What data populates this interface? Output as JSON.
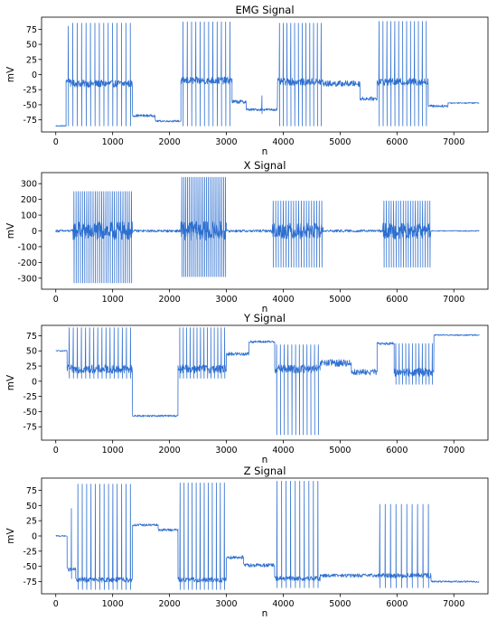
{
  "chart_data": [
    {
      "type": "line",
      "title": "EMG Signal",
      "xlabel": "n",
      "ylabel": "mV",
      "xlim": [
        -250,
        7600
      ],
      "ylim": [
        -95,
        95
      ],
      "xticks": [
        0,
        1000,
        2000,
        3000,
        4000,
        5000,
        6000,
        7000
      ],
      "yticks": [
        -75,
        -50,
        -25,
        0,
        25,
        50,
        75
      ],
      "grid": false,
      "color": "#2e6fd0",
      "segments": [
        {
          "x": [
            0,
            180
          ],
          "level": -85,
          "spikes": 0,
          "peak": 0,
          "trough": 0,
          "noise": 1
        },
        {
          "x": [
            180,
            260
          ],
          "level": -10,
          "spikes": 1,
          "peak": 80,
          "trough": -85,
          "noise": 4
        },
        {
          "x": [
            260,
            1350
          ],
          "level": -15,
          "spikes": 14,
          "peak": 85,
          "trough": -85,
          "noise": 6
        },
        {
          "x": [
            1350,
            1750
          ],
          "level": -68,
          "spikes": 0,
          "peak": 0,
          "trough": 0,
          "noise": 2
        },
        {
          "x": [
            1750,
            2200
          ],
          "level": -77,
          "spikes": 0,
          "peak": 0,
          "trough": 0,
          "noise": 1.5
        },
        {
          "x": [
            2200,
            3100
          ],
          "level": -10,
          "spikes": 12,
          "peak": 87,
          "trough": -85,
          "noise": 6
        },
        {
          "x": [
            3100,
            3350
          ],
          "level": -45,
          "spikes": 0,
          "peak": 0,
          "trough": 0,
          "noise": 3
        },
        {
          "x": [
            3350,
            3900
          ],
          "level": -58,
          "spikes": 1,
          "peak": -35,
          "trough": -65,
          "noise": 2
        },
        {
          "x": [
            3900,
            4700
          ],
          "level": -12,
          "spikes": 12,
          "peak": 85,
          "trough": -85,
          "noise": 6
        },
        {
          "x": [
            4700,
            5350
          ],
          "level": -15,
          "spikes": 0,
          "peak": 0,
          "trough": 0,
          "noise": 5
        },
        {
          "x": [
            5350,
            5650
          ],
          "level": -40,
          "spikes": 0,
          "peak": 0,
          "trough": 0,
          "noise": 3
        },
        {
          "x": [
            5650,
            6550
          ],
          "level": -12,
          "spikes": 13,
          "peak": 88,
          "trough": -85,
          "noise": 6
        },
        {
          "x": [
            6550,
            6900
          ],
          "level": -52,
          "spikes": 0,
          "peak": 0,
          "trough": 0,
          "noise": 2
        },
        {
          "x": [
            6900,
            7450
          ],
          "level": -47,
          "spikes": 0,
          "peak": 0,
          "trough": 0,
          "noise": 1
        }
      ]
    },
    {
      "type": "line",
      "title": "X Signal",
      "xlabel": "n",
      "ylabel": "mV",
      "xlim": [
        -250,
        7600
      ],
      "ylim": [
        -370,
        370
      ],
      "xticks": [
        0,
        1000,
        2000,
        3000,
        4000,
        5000,
        6000,
        7000
      ],
      "yticks": [
        -300,
        -200,
        -100,
        0,
        100,
        200,
        300
      ],
      "grid": false,
      "color": "#2e6fd0",
      "segments": [
        {
          "x": [
            0,
            300
          ],
          "level": 0,
          "spikes": 0,
          "peak": 0,
          "trough": 0,
          "noise": 8
        },
        {
          "x": [
            300,
            1350
          ],
          "level": 0,
          "spikes": 28,
          "peak": 250,
          "trough": -330,
          "noise": 60
        },
        {
          "x": [
            1350,
            2200
          ],
          "level": 0,
          "spikes": 0,
          "peak": 0,
          "trough": 0,
          "noise": 8
        },
        {
          "x": [
            2200,
            3000
          ],
          "level": 0,
          "spikes": 24,
          "peak": 340,
          "trough": -290,
          "noise": 60
        },
        {
          "x": [
            3000,
            3800
          ],
          "level": 0,
          "spikes": 0,
          "peak": 0,
          "trough": 0,
          "noise": 8
        },
        {
          "x": [
            3800,
            4700
          ],
          "level": 0,
          "spikes": 20,
          "peak": 190,
          "trough": -230,
          "noise": 50
        },
        {
          "x": [
            4700,
            5750
          ],
          "level": 0,
          "spikes": 0,
          "peak": 0,
          "trough": 0,
          "noise": 8
        },
        {
          "x": [
            5750,
            6600
          ],
          "level": 0,
          "spikes": 20,
          "peak": 190,
          "trough": -230,
          "noise": 50
        },
        {
          "x": [
            6600,
            7450
          ],
          "level": 0,
          "spikes": 0,
          "peak": 0,
          "trough": 0,
          "noise": 3
        }
      ]
    },
    {
      "type": "line",
      "title": "Y Signal",
      "xlabel": "n",
      "ylabel": "mV",
      "xlim": [
        -250,
        7600
      ],
      "ylim": [
        -97,
        92
      ],
      "xticks": [
        0,
        1000,
        2000,
        3000,
        4000,
        5000,
        6000,
        7000
      ],
      "yticks": [
        -75,
        -50,
        -25,
        0,
        25,
        50,
        75
      ],
      "grid": false,
      "color": "#2e6fd0",
      "segments": [
        {
          "x": [
            0,
            200
          ],
          "level": 50,
          "spikes": 0,
          "peak": 0,
          "trough": 0,
          "noise": 1
        },
        {
          "x": [
            200,
            1350
          ],
          "level": 20,
          "spikes": 16,
          "peak": 88,
          "trough": 5,
          "noise": 7
        },
        {
          "x": [
            1350,
            2150
          ],
          "level": -57,
          "spikes": 0,
          "peak": 0,
          "trough": 0,
          "noise": 1.5
        },
        {
          "x": [
            2150,
            3000
          ],
          "level": 20,
          "spikes": 14,
          "peak": 88,
          "trough": 5,
          "noise": 7
        },
        {
          "x": [
            3000,
            3400
          ],
          "level": 45,
          "spikes": 0,
          "peak": 0,
          "trough": 0,
          "noise": 3
        },
        {
          "x": [
            3400,
            3850
          ],
          "level": 65,
          "spikes": 0,
          "peak": 0,
          "trough": 0,
          "noise": 2
        },
        {
          "x": [
            3850,
            4650
          ],
          "level": 20,
          "spikes": 12,
          "peak": 60,
          "trough": -88,
          "noise": 7
        },
        {
          "x": [
            4650,
            5200
          ],
          "level": 30,
          "spikes": 0,
          "peak": 0,
          "trough": 0,
          "noise": 6
        },
        {
          "x": [
            5200,
            5650
          ],
          "level": 15,
          "spikes": 0,
          "peak": 0,
          "trough": 0,
          "noise": 5
        },
        {
          "x": [
            5650,
            5950
          ],
          "level": 62,
          "spikes": 0,
          "peak": 0,
          "trough": 0,
          "noise": 2
        },
        {
          "x": [
            5950,
            6650
          ],
          "level": 15,
          "spikes": 12,
          "peak": 62,
          "trough": -5,
          "noise": 7
        },
        {
          "x": [
            6650,
            7450
          ],
          "level": 76,
          "spikes": 0,
          "peak": 0,
          "trough": 0,
          "noise": 1
        }
      ]
    },
    {
      "type": "line",
      "title": "Z Signal",
      "xlabel": "n",
      "ylabel": "mV",
      "xlim": [
        -250,
        7600
      ],
      "ylim": [
        -95,
        95
      ],
      "xticks": [
        0,
        1000,
        2000,
        3000,
        4000,
        5000,
        6000,
        7000
      ],
      "yticks": [
        -75,
        -50,
        -25,
        0,
        25,
        50,
        75
      ],
      "grid": false,
      "color": "#2e6fd0",
      "segments": [
        {
          "x": [
            0,
            200
          ],
          "level": 0,
          "spikes": 0,
          "peak": 0,
          "trough": 0,
          "noise": 1
        },
        {
          "x": [
            200,
            350
          ],
          "level": -55,
          "spikes": 1,
          "peak": 45,
          "trough": -70,
          "noise": 3
        },
        {
          "x": [
            350,
            1350
          ],
          "level": -72,
          "spikes": 13,
          "peak": 85,
          "trough": -88,
          "noise": 4
        },
        {
          "x": [
            1350,
            1800
          ],
          "level": 18,
          "spikes": 0,
          "peak": 0,
          "trough": 0,
          "noise": 2
        },
        {
          "x": [
            1800,
            2150
          ],
          "level": 10,
          "spikes": 0,
          "peak": 0,
          "trough": 0,
          "noise": 2
        },
        {
          "x": [
            2150,
            3000
          ],
          "level": -72,
          "spikes": 12,
          "peak": 87,
          "trough": -88,
          "noise": 4
        },
        {
          "x": [
            3000,
            3300
          ],
          "level": -35,
          "spikes": 0,
          "peak": 0,
          "trough": 0,
          "noise": 3
        },
        {
          "x": [
            3300,
            3850
          ],
          "level": -48,
          "spikes": 0,
          "peak": 0,
          "trough": 0,
          "noise": 3
        },
        {
          "x": [
            3850,
            4650
          ],
          "level": -70,
          "spikes": 10,
          "peak": 90,
          "trough": -85,
          "noise": 4
        },
        {
          "x": [
            4650,
            5650
          ],
          "level": -65,
          "spikes": 0,
          "peak": 0,
          "trough": 0,
          "noise": 3
        },
        {
          "x": [
            5650,
            6600
          ],
          "level": -65,
          "spikes": 10,
          "peak": 52,
          "trough": -85,
          "noise": 4
        },
        {
          "x": [
            6600,
            7450
          ],
          "level": -75,
          "spikes": 0,
          "peak": 0,
          "trough": 0,
          "noise": 1.5
        }
      ]
    }
  ]
}
